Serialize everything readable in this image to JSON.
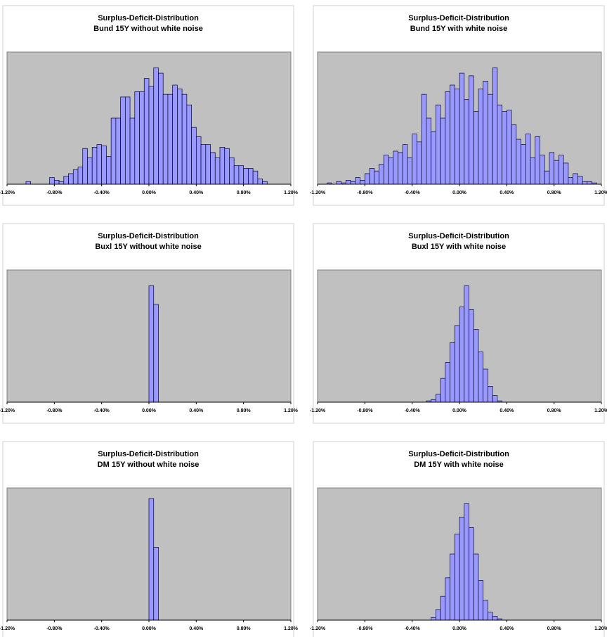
{
  "chart_data": [
    {
      "type": "histogram",
      "title": "Surplus-Deficit-Distribution",
      "subtitle": "Bund 15Y without white noise",
      "bins": [
        -1.04,
        -1,
        -0.96,
        -0.92,
        -0.88,
        -0.84,
        -0.8,
        -0.76,
        -0.72,
        -0.68,
        -0.64,
        -0.6,
        -0.56,
        -0.52,
        -0.48,
        -0.44,
        -0.4,
        -0.36,
        -0.32,
        -0.28,
        -0.24,
        -0.2,
        -0.16,
        -0.12,
        -0.08,
        -0.04,
        0,
        0.04,
        0.08,
        0.12,
        0.16,
        0.2,
        0.24,
        0.28,
        0.32,
        0.36,
        0.4,
        0.44,
        0.48,
        0.52,
        0.56,
        0.6,
        0.64,
        0.68,
        0.72,
        0.76,
        0.8,
        0.84,
        0.88,
        0.92,
        0.96,
        1
      ],
      "values": [
        2,
        0,
        0,
        0,
        0,
        5,
        3,
        2,
        6,
        8,
        11,
        13,
        27,
        20,
        28,
        30,
        29,
        21,
        50,
        50,
        66,
        66,
        50,
        70,
        70,
        80,
        74,
        88,
        84,
        68,
        68,
        75,
        72,
        68,
        60,
        43,
        36,
        30,
        30,
        24,
        20,
        28,
        27,
        20,
        14,
        14,
        12,
        12,
        10,
        4,
        2
      ],
      "color": "#9999ff",
      "xlim": [
        -1.2,
        1.2
      ],
      "ylim": [
        0,
        100
      ],
      "xticks": [
        {
          "value": -1.2,
          "label": "-1.20%"
        },
        {
          "value": -0.8,
          "label": "-0.80%"
        },
        {
          "value": -0.4,
          "label": "-0.40%"
        },
        {
          "value": 0,
          "label": "0.00%"
        },
        {
          "value": 0.4,
          "label": "0.40%"
        },
        {
          "value": 0.8,
          "label": "0.80%"
        },
        {
          "value": 1.2,
          "label": "1.20%"
        }
      ]
    },
    {
      "type": "histogram",
      "title": "Surplus-Deficit-Distribution",
      "subtitle": "Bund 15Y with white noise",
      "bins": [
        -1.12,
        -1.08,
        -1.04,
        -1,
        -0.96,
        -0.92,
        -0.88,
        -0.84,
        -0.8,
        -0.76,
        -0.72,
        -0.68,
        -0.64,
        -0.6,
        -0.56,
        -0.52,
        -0.48,
        -0.44,
        -0.4,
        -0.36,
        -0.32,
        -0.28,
        -0.24,
        -0.2,
        -0.16,
        -0.12,
        -0.08,
        -0.04,
        0,
        0.04,
        0.08,
        0.12,
        0.16,
        0.2,
        0.24,
        0.28,
        0.32,
        0.36,
        0.4,
        0.44,
        0.48,
        0.52,
        0.56,
        0.6,
        0.64,
        0.68,
        0.72,
        0.76,
        0.8,
        0.84,
        0.88,
        0.92,
        0.96,
        1,
        1.04,
        1.08,
        1.12,
        1.16
      ],
      "values": [
        1,
        0,
        2,
        1,
        3,
        2,
        5,
        3,
        8,
        12,
        10,
        15,
        22,
        20,
        25,
        24,
        30,
        20,
        38,
        32,
        68,
        50,
        40,
        60,
        50,
        70,
        75,
        72,
        84,
        64,
        82,
        55,
        72,
        78,
        68,
        88,
        60,
        55,
        56,
        45,
        34,
        30,
        38,
        20,
        36,
        22,
        10,
        24,
        18,
        22,
        16,
        5,
        8,
        6,
        2,
        2,
        1
      ],
      "color": "#9999ff",
      "xlim": [
        -1.2,
        1.2
      ],
      "ylim": [
        0,
        100
      ],
      "xticks": [
        {
          "value": -1.2,
          "label": "-1.20%"
        },
        {
          "value": -0.8,
          "label": "-0.80%"
        },
        {
          "value": -0.4,
          "label": "-0.40%"
        },
        {
          "value": 0,
          "label": "0.00%"
        },
        {
          "value": 0.4,
          "label": "0.40%"
        },
        {
          "value": 0.8,
          "label": "0.80%"
        },
        {
          "value": 1.2,
          "label": "1.20%"
        }
      ]
    },
    {
      "type": "histogram",
      "title": "Surplus-Deficit-Distribution",
      "subtitle": "Buxl 15Y without white noise",
      "bins": [
        0,
        0.04,
        0.08
      ],
      "values": [
        88,
        74
      ],
      "color": "#9999ff",
      "xlim": [
        -1.2,
        1.2
      ],
      "ylim": [
        0,
        100
      ],
      "xticks": [
        {
          "value": -1.2,
          "label": "-1.20%"
        },
        {
          "value": -0.8,
          "label": "-0.80%"
        },
        {
          "value": -0.4,
          "label": "-0.40%"
        },
        {
          "value": 0,
          "label": "0.00%"
        },
        {
          "value": 0.4,
          "label": "0.40%"
        },
        {
          "value": 0.8,
          "label": "0.80%"
        },
        {
          "value": 1.2,
          "label": "1.20%"
        }
      ]
    },
    {
      "type": "histogram",
      "title": "Surplus-Deficit-Distribution",
      "subtitle": "Buxl 15Y with white noise",
      "bins": [
        -0.28,
        -0.24,
        -0.2,
        -0.16,
        -0.12,
        -0.08,
        -0.04,
        0,
        0.04,
        0.08,
        0.12,
        0.16,
        0.2,
        0.24,
        0.28,
        0.32,
        0.36
      ],
      "values": [
        1,
        2,
        6,
        18,
        30,
        45,
        58,
        72,
        88,
        70,
        55,
        38,
        25,
        12,
        5,
        1
      ],
      "color": "#9999ff",
      "xlim": [
        -1.2,
        1.2
      ],
      "ylim": [
        0,
        100
      ],
      "xticks": [
        {
          "value": -1.2,
          "label": "-1.20%"
        },
        {
          "value": -0.8,
          "label": "-0.80%"
        },
        {
          "value": -0.4,
          "label": "-0.40%"
        },
        {
          "value": 0,
          "label": "0.00%"
        },
        {
          "value": 0.4,
          "label": "0.40%"
        },
        {
          "value": 0.8,
          "label": "0.80%"
        },
        {
          "value": 1.2,
          "label": "1.20%"
        }
      ]
    },
    {
      "type": "histogram",
      "title": "Surplus-Deficit-Distribution",
      "subtitle": "DM 15Y without white noise",
      "bins": [
        0,
        0.04,
        0.08
      ],
      "values": [
        92,
        55
      ],
      "color": "#9999ff",
      "xlim": [
        -1.2,
        1.2
      ],
      "ylim": [
        0,
        100
      ],
      "xticks": [
        {
          "value": -1.2,
          "label": "-1.20%"
        },
        {
          "value": -0.8,
          "label": "-0.80%"
        },
        {
          "value": -0.4,
          "label": "-0.40%"
        },
        {
          "value": 0,
          "label": "0.00%"
        },
        {
          "value": 0.4,
          "label": "0.40%"
        },
        {
          "value": 0.8,
          "label": "0.80%"
        },
        {
          "value": 1.2,
          "label": "1.20%"
        }
      ]
    },
    {
      "type": "histogram",
      "title": "Surplus-Deficit-Distribution",
      "subtitle": "DM 15Y with white noise",
      "bins": [
        -0.24,
        -0.2,
        -0.16,
        -0.12,
        -0.08,
        -0.04,
        0,
        0.04,
        0.08,
        0.12,
        0.16,
        0.2,
        0.24,
        0.28,
        0.32,
        0.36
      ],
      "values": [
        2,
        8,
        18,
        32,
        50,
        65,
        78,
        88,
        70,
        50,
        30,
        15,
        6,
        3,
        1
      ],
      "color": "#9999ff",
      "xlim": [
        -1.2,
        1.2
      ],
      "ylim": [
        0,
        100
      ],
      "xticks": [
        {
          "value": -1.2,
          "label": "-1.20%"
        },
        {
          "value": -0.8,
          "label": "-0.80%"
        },
        {
          "value": -0.4,
          "label": "-0.40%"
        },
        {
          "value": 0,
          "label": "0.00%"
        },
        {
          "value": 0.4,
          "label": "0.40%"
        },
        {
          "value": 0.8,
          "label": "0.80%"
        },
        {
          "value": 1.2,
          "label": "1.20%"
        }
      ]
    }
  ]
}
